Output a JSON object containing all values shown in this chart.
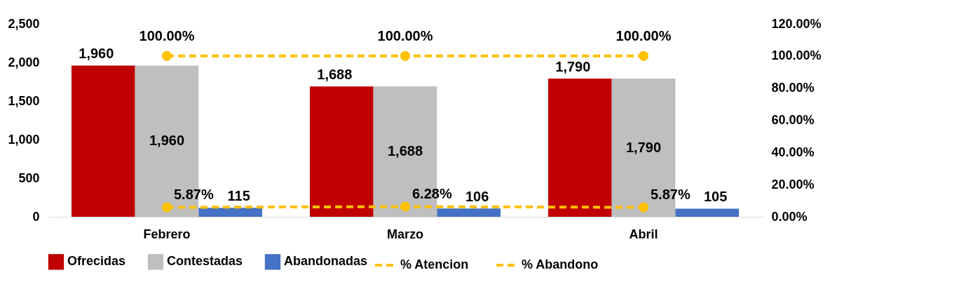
{
  "chart_data": {
    "type": "bar",
    "categories": [
      "Febrero",
      "Marzo",
      "Abril"
    ],
    "series": [
      {
        "name": "Ofrecidas",
        "color": "#c00000",
        "values": [
          1960,
          1688,
          1790
        ],
        "value_labels": [
          "1,960",
          "1,688",
          "1,790"
        ]
      },
      {
        "name": "Contestadas",
        "color": "#bfbfbf",
        "values": [
          1960,
          1688,
          1790
        ],
        "value_labels": [
          "1,960",
          "1,688",
          "1,790"
        ]
      },
      {
        "name": "Abandonadas",
        "color": "#4472c4",
        "values": [
          115,
          106,
          105
        ],
        "value_labels": [
          "115",
          "106",
          "105"
        ]
      },
      {
        "name": "% Atencion",
        "type": "line",
        "axis": "y2",
        "color": "#ffc000",
        "values": [
          100,
          100,
          100
        ],
        "value_labels": [
          "100.00%",
          "100.00%",
          "100.00%"
        ]
      },
      {
        "name": "% Abandono",
        "type": "line",
        "axis": "y2",
        "color": "#ffc000",
        "values": [
          5.87,
          6.28,
          5.87
        ],
        "value_labels": [
          "5.87%",
          "6.28%",
          "5.87%"
        ]
      }
    ],
    "ylim": [
      0,
      2500
    ],
    "yticks": [
      0,
      500,
      {
        "value": 1000,
        "label": "1,000"
      },
      {
        "value": 1500,
        "label": "1,500"
      },
      {
        "value": 2000,
        "label": "2,000"
      },
      {
        "value": 2500,
        "label": "2,500"
      }
    ],
    "y2lim": [
      0,
      120
    ],
    "y2ticks": [
      {
        "value": 0,
        "label": "0.00%"
      },
      {
        "value": 20,
        "label": "20.00%"
      },
      {
        "value": 40,
        "label": "40.00%"
      },
      {
        "value": 60,
        "label": "60.00%"
      },
      {
        "value": 80,
        "label": "80.00%"
      },
      {
        "value": 100,
        "label": "100.00%"
      },
      {
        "value": 120,
        "label": "120.00%"
      }
    ],
    "grid": false,
    "legend": "bottom",
    "marker": "circle",
    "line_style": "dashed"
  }
}
